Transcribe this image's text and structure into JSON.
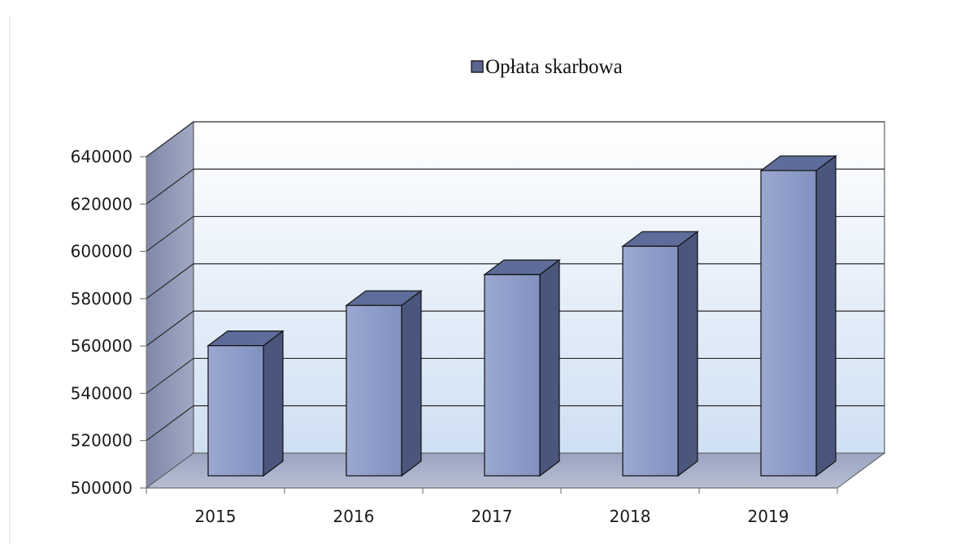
{
  "chart_data": {
    "type": "bar",
    "three_d": true,
    "categories": [
      "2015",
      "2016",
      "2017",
      "2018",
      "2019"
    ],
    "series": [
      {
        "name": "Opłata skarbowa",
        "values": [
          555000,
          572000,
          585000,
          597000,
          629000
        ]
      }
    ],
    "y_ticks": [
      "500000",
      "520000",
      "540000",
      "560000",
      "580000",
      "600000",
      "620000",
      "640000"
    ],
    "ylim": [
      500000,
      640000
    ],
    "grid": true,
    "legend_position": "top-center",
    "colors": {
      "bar_front": "#8e9dcb",
      "bar_top": "#5d6c98",
      "bar_side": "#4b567d",
      "back_wall": "#dbe8f7",
      "side_wall": "#8b94b4",
      "floor": "#a3acc6",
      "legend_marker": "#5b6690"
    }
  }
}
